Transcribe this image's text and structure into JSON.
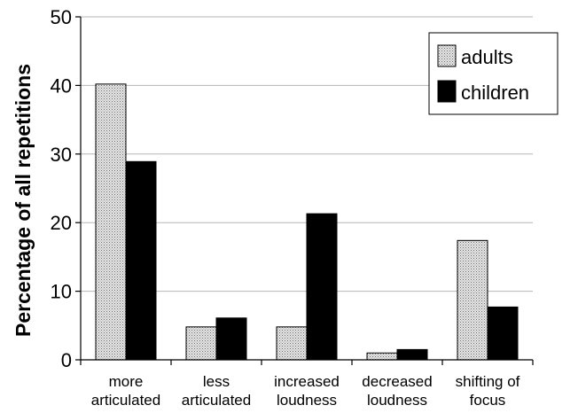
{
  "chart_data": {
    "type": "bar",
    "categories": [
      [
        "more",
        "articulated"
      ],
      [
        "less",
        "articulated"
      ],
      [
        "increased",
        "loudness"
      ],
      [
        "decreased",
        "loudness"
      ],
      [
        "shifting of",
        "focus"
      ]
    ],
    "series": [
      {
        "name": "adults",
        "values": [
          40.2,
          4.8,
          4.8,
          1.0,
          17.4
        ],
        "color": "#d9d9d9",
        "pattern": "dotted"
      },
      {
        "name": "children",
        "values": [
          28.9,
          6.1,
          21.3,
          1.5,
          7.7
        ],
        "color": "#000000",
        "pattern": "solid"
      }
    ],
    "title": "",
    "xlabel": "",
    "ylabel": "Percentage of all repetitions",
    "ylim": [
      0,
      50
    ],
    "yticks": [
      0,
      10,
      20,
      30,
      40,
      50
    ],
    "grid": true,
    "legend_position": "top-right"
  }
}
